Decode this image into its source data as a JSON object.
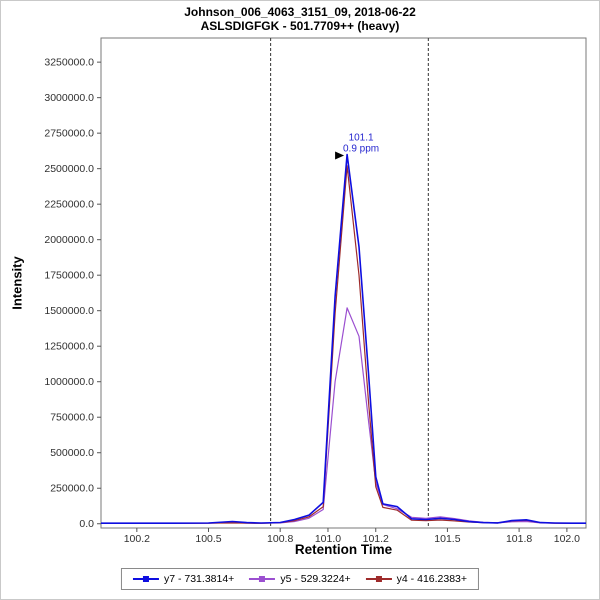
{
  "chart_data": {
    "type": "line",
    "title_lines": [
      "Johnson_006_4063_3151_09, 2018-06-22",
      "ASLSDIGFGK - 501.7709++ (heavy)"
    ],
    "xlabel": "Retention Time",
    "ylabel": "Intensity",
    "x_range": [
      100.05,
      102.08
    ],
    "y_range": [
      -30000,
      3420000
    ],
    "grid": false,
    "legend_position": "bottom",
    "x_ticks": {
      "values": [
        100.2,
        100.5,
        100.8,
        101.0,
        101.2,
        101.5,
        101.8,
        102.0
      ],
      "labels": [
        "100.2",
        "100.5",
        "100.8",
        "101.0",
        "101.2",
        "101.5",
        "101.8",
        "102.0"
      ]
    },
    "y_ticks": {
      "values": [
        0,
        250000,
        500000,
        750000,
        1000000,
        1250000,
        1500000,
        1750000,
        2000000,
        2250000,
        2500000,
        2750000,
        3000000,
        3250000
      ],
      "labels": [
        "0.0",
        "250000.0",
        "500000.0",
        "750000.0",
        "1000000.0",
        "1250000.0",
        "1500000.0",
        "1750000.0",
        "2000000.0",
        "2250000.0",
        "2500000.0",
        "2750000.0",
        "3000000.0",
        "3250000.0"
      ]
    },
    "x": [
      100.05,
      100.2,
      100.35,
      100.5,
      100.6,
      100.66,
      100.72,
      100.8,
      100.86,
      100.92,
      100.98,
      101.03,
      101.08,
      101.13,
      101.17,
      101.2,
      101.23,
      101.29,
      101.35,
      101.41,
      101.47,
      101.53,
      101.59,
      101.65,
      101.71,
      101.77,
      101.83,
      101.89,
      101.95,
      102.02,
      102.08
    ],
    "series": [
      {
        "id": "y7",
        "name": "y7 - 731.3814+",
        "color": "#0e0ee0",
        "values": [
          4000,
          4000,
          4000,
          5000,
          16000,
          8000,
          5000,
          9000,
          30000,
          60000,
          150000,
          1600000,
          2600000,
          1950000,
          1050000,
          330000,
          140000,
          120000,
          35000,
          30000,
          38000,
          30000,
          15000,
          8000,
          6000,
          22000,
          28000,
          8000,
          5000,
          4000,
          4000
        ]
      },
      {
        "id": "y5",
        "name": "y5 - 529.3224+",
        "color": "#9b4fd0",
        "values": [
          3000,
          3000,
          3000,
          4000,
          9000,
          5000,
          4000,
          6000,
          16000,
          38000,
          100000,
          1000000,
          1520000,
          1320000,
          720000,
          290000,
          135000,
          105000,
          45000,
          38000,
          48000,
          36000,
          20000,
          10000,
          6000,
          14000,
          16000,
          6000,
          4000,
          3000,
          3000
        ]
      },
      {
        "id": "y4",
        "name": "y4 - 416.2383+",
        "color": "#9e2b2b",
        "values": [
          3000,
          3000,
          3000,
          4000,
          6000,
          4000,
          3000,
          7000,
          22000,
          48000,
          120000,
          1480000,
          2520000,
          1750000,
          850000,
          260000,
          115000,
          95000,
          25000,
          22000,
          26000,
          20000,
          12000,
          7000,
          5000,
          20000,
          24000,
          7000,
          4000,
          3000,
          3000
        ]
      }
    ],
    "integration_boundaries": [
      100.76,
      101.42
    ],
    "peak_annotation": {
      "x": 101.08,
      "y": 2600000,
      "line1": "101.1",
      "line2": "0.9 ppm",
      "color": "#2727cf"
    }
  }
}
